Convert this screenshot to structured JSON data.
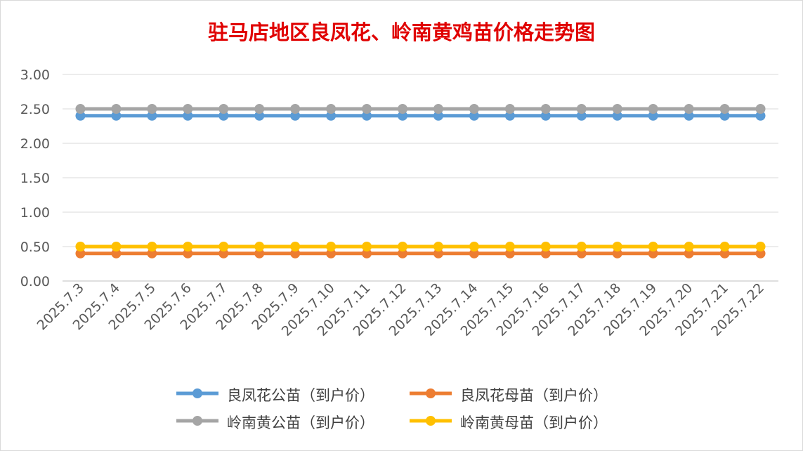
{
  "chart_data": {
    "type": "line",
    "title": "驻马店地区良凤花、岭南黄鸡苗价格走势图",
    "xlabel": "",
    "ylabel": "",
    "ylim": [
      0,
      3
    ],
    "yticks": [
      "0.00",
      "0.50",
      "1.00",
      "1.50",
      "2.00",
      "2.50",
      "3.00"
    ],
    "grid": true,
    "legend_position": "bottom",
    "categories": [
      "2025.7.3",
      "2025.7.4",
      "2025.7.5",
      "2025.7.6",
      "2025.7.7",
      "2025.7.8",
      "2025.7.9",
      "2025.7.10",
      "2025.7.11",
      "2025.7.12",
      "2025.7.13",
      "2025.7.14",
      "2025.7.15",
      "2025.7.16",
      "2025.7.17",
      "2025.7.18",
      "2025.7.19",
      "2025.7.20",
      "2025.7.21",
      "2025.7.22"
    ],
    "series": [
      {
        "name": "良凤花公苗（到户价）",
        "color": "#5b9bd5",
        "values": [
          2.4,
          2.4,
          2.4,
          2.4,
          2.4,
          2.4,
          2.4,
          2.4,
          2.4,
          2.4,
          2.4,
          2.4,
          2.4,
          2.4,
          2.4,
          2.4,
          2.4,
          2.4,
          2.4,
          2.4
        ]
      },
      {
        "name": "良凤花母苗（到户价）",
        "color": "#ed7d31",
        "values": [
          0.4,
          0.4,
          0.4,
          0.4,
          0.4,
          0.4,
          0.4,
          0.4,
          0.4,
          0.4,
          0.4,
          0.4,
          0.4,
          0.4,
          0.4,
          0.4,
          0.4,
          0.4,
          0.4,
          0.4
        ]
      },
      {
        "name": "岭南黄公苗（到户价）",
        "color": "#a5a5a5",
        "values": [
          2.5,
          2.5,
          2.5,
          2.5,
          2.5,
          2.5,
          2.5,
          2.5,
          2.5,
          2.5,
          2.5,
          2.5,
          2.5,
          2.5,
          2.5,
          2.5,
          2.5,
          2.5,
          2.5,
          2.5
        ]
      },
      {
        "name": "岭南黄母苗（到户价）",
        "color": "#ffc000",
        "values": [
          0.5,
          0.5,
          0.5,
          0.5,
          0.5,
          0.5,
          0.5,
          0.5,
          0.5,
          0.5,
          0.5,
          0.5,
          0.5,
          0.5,
          0.5,
          0.5,
          0.5,
          0.5,
          0.5,
          0.5
        ]
      }
    ]
  }
}
